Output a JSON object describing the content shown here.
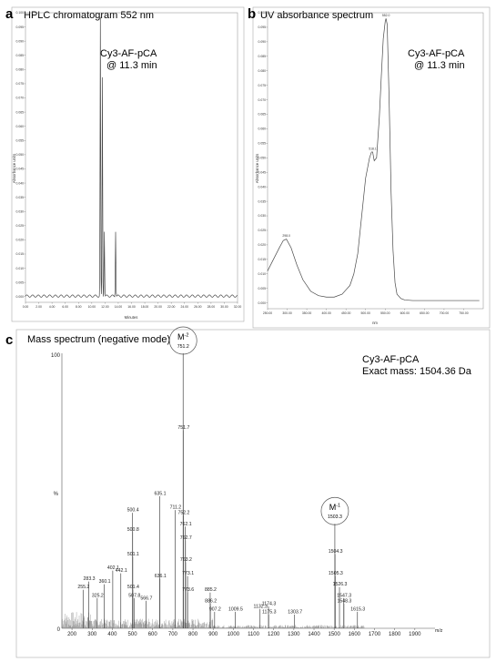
{
  "chart_data": [
    {
      "panel": "a",
      "type": "line",
      "title": "HPLC chromatogram 552 nm",
      "annotation": [
        "Cy3-AF-pCA",
        "@ 11.3 min"
      ],
      "xlabel": "Minutes",
      "ylabel": "Absorbance units",
      "xlim": [
        0,
        32
      ],
      "ylim": [
        -0.002,
        0.1
      ],
      "x_ticks": [
        "0.00",
        "2.00",
        "4.00",
        "6.00",
        "8.00",
        "10.00",
        "12.00",
        "14.00",
        "16.00",
        "18.00",
        "20.00",
        "22.00",
        "24.00",
        "26.00",
        "28.00",
        "30.00",
        "32.00"
      ],
      "y_ticks": [
        "0.000",
        "0.005",
        "0.010",
        "0.015",
        "0.020",
        "0.025",
        "0.030",
        "0.035",
        "0.040",
        "0.045",
        "0.050",
        "0.055",
        "0.060",
        "0.065",
        "0.070",
        "0.075",
        "0.080",
        "0.085",
        "0.090",
        "0.095",
        "0.100"
      ],
      "peaks": [
        {
          "x": 11.3,
          "y": 0.098
        },
        {
          "x": 11.6,
          "y": 0.077
        },
        {
          "x": 11.9,
          "y": 0.023
        },
        {
          "x": 13.6,
          "y": 0.023
        }
      ]
    },
    {
      "panel": "b",
      "type": "line",
      "title": "UV absorbance spectrum",
      "annotation": [
        "Cy3-AF-pCA",
        "@ 11.3 min"
      ],
      "xlabel": "nm",
      "ylabel": "Absorbance units",
      "xlim": [
        250,
        800
      ],
      "ylim": [
        -0.002,
        0.1
      ],
      "x_ticks": [
        "250.00",
        "300.00",
        "350.00",
        "400.00",
        "450.00",
        "500.00",
        "550.00",
        "600.00",
        "650.00",
        "700.00",
        "750.00"
      ],
      "y_ticks": [
        "0.000",
        "0.005",
        "0.010",
        "0.015",
        "0.020",
        "0.025",
        "0.030",
        "0.035",
        "0.040",
        "0.045",
        "0.050",
        "0.055",
        "0.060",
        "0.065",
        "0.070",
        "0.075",
        "0.080",
        "0.085",
        "0.090",
        "0.095",
        "0.100"
      ],
      "peak_labels": [
        {
          "text": "552.0",
          "x": 552,
          "y": 0.098
        },
        {
          "text": "518.1",
          "x": 518,
          "y": 0.052
        },
        {
          "text": "298.0",
          "x": 298,
          "y": 0.022
        }
      ],
      "x": [
        250,
        265,
        280,
        290,
        298,
        310,
        325,
        340,
        360,
        380,
        400,
        420,
        440,
        460,
        470,
        480,
        490,
        500,
        510,
        515,
        518,
        522,
        528,
        535,
        540,
        545,
        550,
        552,
        555,
        560,
        565,
        570,
        575,
        580,
        590,
        600,
        620,
        650,
        700,
        750,
        790
      ],
      "y": [
        0.011,
        0.015,
        0.019,
        0.0215,
        0.022,
        0.019,
        0.013,
        0.008,
        0.004,
        0.0025,
        0.002,
        0.002,
        0.003,
        0.006,
        0.01,
        0.017,
        0.03,
        0.043,
        0.05,
        0.052,
        0.052,
        0.049,
        0.05,
        0.064,
        0.078,
        0.091,
        0.097,
        0.098,
        0.096,
        0.07,
        0.038,
        0.018,
        0.007,
        0.003,
        0.0015,
        0.001,
        0.0008,
        0.0008,
        0.0008,
        0.0008,
        0.0008
      ]
    },
    {
      "panel": "c",
      "type": "bar",
      "title": "Mass spectrum (negative mode)",
      "annotation": [
        "Cy3-AF-pCA",
        "Exact mass: 1504.36 Da"
      ],
      "xlabel": "m/z",
      "ylabel": "%",
      "xlim": [
        150,
        2000
      ],
      "ylim": [
        0,
        100
      ],
      "x_ticks": [
        "200",
        "300",
        "400",
        "500",
        "600",
        "700",
        "800",
        "900",
        "1000",
        "1100",
        "1200",
        "1300",
        "1400",
        "1500",
        "1600",
        "1700",
        "1800",
        "1900"
      ],
      "y_ticks": [
        "0",
        "100"
      ],
      "ions": [
        {
          "label": "M",
          "charge": "-2",
          "mz_text": "751.2"
        },
        {
          "label": "M",
          "charge": "-1",
          "mz_text": "1503.3"
        }
      ],
      "peaks": [
        {
          "mz": 751.2,
          "intensity": 100,
          "label": "",
          "show_label": false
        },
        {
          "mz": 751.7,
          "intensity": 72,
          "label": "751.7"
        },
        {
          "mz": 635.1,
          "intensity": 48,
          "label": "635.1"
        },
        {
          "mz": 500.4,
          "intensity": 42,
          "label": "500.4"
        },
        {
          "mz": 711.2,
          "intensity": 43,
          "label": "711.2"
        },
        {
          "mz": 752.2,
          "intensity": 41,
          "label": "752.2"
        },
        {
          "mz": 762.1,
          "intensity": 37,
          "label": "762.1"
        },
        {
          "mz": 500.8,
          "intensity": 35,
          "label": "500.8"
        },
        {
          "mz": 762.7,
          "intensity": 32,
          "label": "762.7"
        },
        {
          "mz": 501.1,
          "intensity": 26,
          "label": "501.1"
        },
        {
          "mz": 763.2,
          "intensity": 24,
          "label": "763.2"
        },
        {
          "mz": 402.1,
          "intensity": 21,
          "label": "402.1"
        },
        {
          "mz": 442.1,
          "intensity": 20,
          "label": "442.1"
        },
        {
          "mz": 773.1,
          "intensity": 19,
          "label": "773.1"
        },
        {
          "mz": 283.3,
          "intensity": 17,
          "label": "283.3"
        },
        {
          "mz": 360.1,
          "intensity": 16,
          "label": "360.1"
        },
        {
          "mz": 636.1,
          "intensity": 18,
          "label": "636.1"
        },
        {
          "mz": 255.2,
          "intensity": 14,
          "label": "255.2"
        },
        {
          "mz": 501.4,
          "intensity": 14,
          "label": "501.4"
        },
        {
          "mz": 773.6,
          "intensity": 13,
          "label": "773.6"
        },
        {
          "mz": 885.2,
          "intensity": 13,
          "label": "885.2"
        },
        {
          "mz": 325.2,
          "intensity": 11,
          "label": "325.2"
        },
        {
          "mz": 507.8,
          "intensity": 11,
          "label": "507.8"
        },
        {
          "mz": 566.7,
          "intensity": 10,
          "label": "566.7"
        },
        {
          "mz": 886.2,
          "intensity": 9,
          "label": "886.2"
        },
        {
          "mz": 907.2,
          "intensity": 6,
          "label": "907.2"
        },
        {
          "mz": 1009.5,
          "intensity": 6,
          "label": "1009.5"
        },
        {
          "mz": 1132.3,
          "intensity": 7,
          "label": "1132.3"
        },
        {
          "mz": 1174.3,
          "intensity": 8,
          "label": "1174.3"
        },
        {
          "mz": 1175.3,
          "intensity": 5,
          "label": "1175.3"
        },
        {
          "mz": 1303.7,
          "intensity": 5,
          "label": "1303.7"
        },
        {
          "mz": 1504.3,
          "intensity": 27,
          "label": "1504.3"
        },
        {
          "mz": 1503.3,
          "intensity": 38,
          "label": "",
          "show_label": false
        },
        {
          "mz": 1505.3,
          "intensity": 19,
          "label": "1505.3"
        },
        {
          "mz": 1526.3,
          "intensity": 15,
          "label": "1526.3"
        },
        {
          "mz": 1547.3,
          "intensity": 11,
          "label": "1547.3"
        },
        {
          "mz": 1548.3,
          "intensity": 9,
          "label": "1548.3"
        },
        {
          "mz": 1615.3,
          "intensity": 6,
          "label": "1615.3"
        }
      ]
    }
  ],
  "panels": {
    "a": {
      "letter": "a",
      "title": "HPLC chromatogram 552 nm",
      "ann1": "Cy3-AF-pCA",
      "ann2": "@ 11.3 min",
      "xlabel": "Minutes",
      "ylabel": "Absorbance units"
    },
    "b": {
      "letter": "b",
      "title": "UV absorbance spectrum",
      "ann1": "Cy3-AF-pCA",
      "ann2": "@ 11.3 min",
      "xlabel": "nm",
      "ylabel": "Absorbance units"
    },
    "c": {
      "letter": "c",
      "title": "Mass spectrum (negative mode)",
      "ann1": "Cy3-AF-pCA",
      "ann2": "Exact mass: 1504.36 Da",
      "xlabel": "m/z",
      "ylabel": "%",
      "y100": "100",
      "y0": "0"
    }
  },
  "colors": {
    "line": "#4a4a4a",
    "frame": "#999999",
    "circle": "#555555"
  }
}
